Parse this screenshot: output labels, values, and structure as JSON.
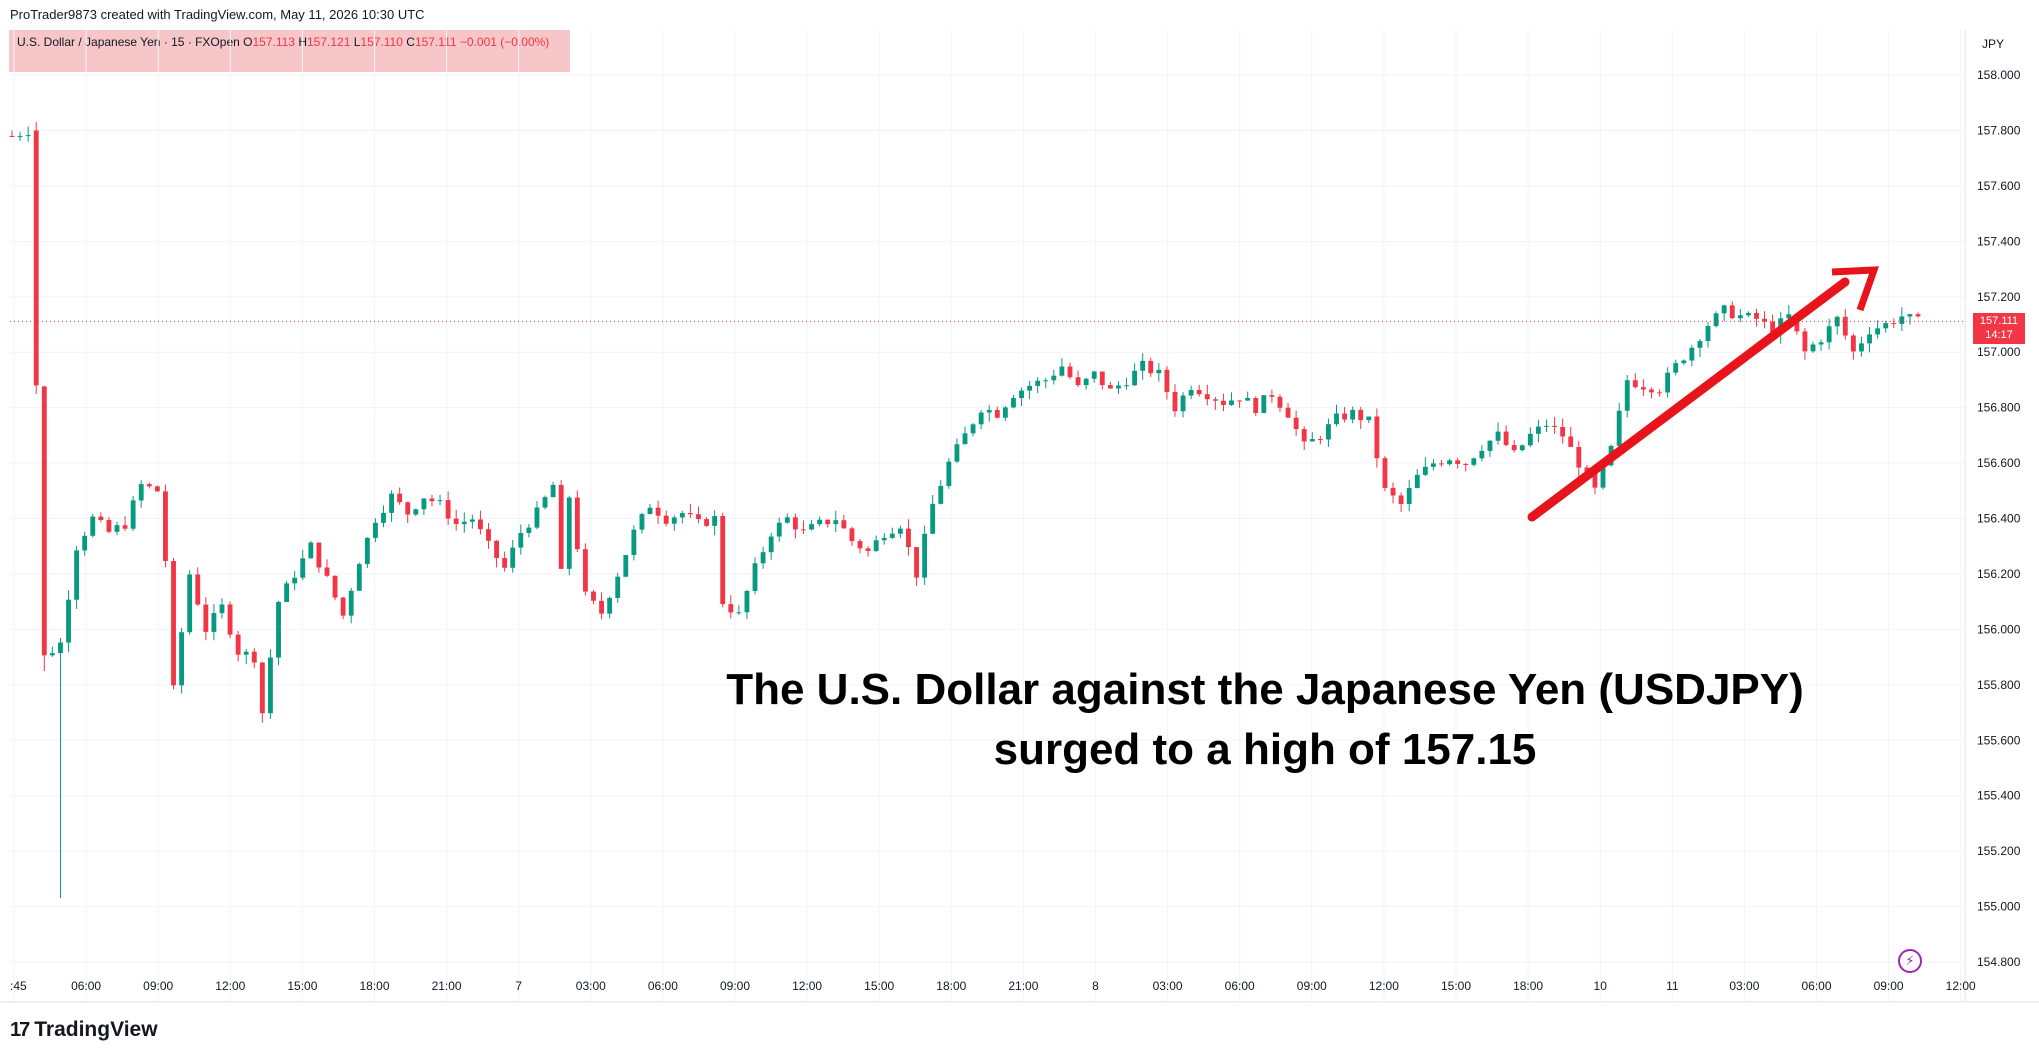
{
  "attribution": "ProTrader9873 created with TradingView.com, May 11, 2026 10:30 UTC",
  "legend": {
    "symbol": "U.S. Dollar / Japanese Yen · 15 · FXOpen",
    "o_label": "O",
    "o_value": "157.113",
    "h_label": "H",
    "h_value": "157.121",
    "l_label": "L",
    "l_value": "157.110",
    "c_label": "C",
    "c_value": "157.111",
    "change": "−0.001 (−0.00%)"
  },
  "currency_label": "JPY",
  "last_price": {
    "price": "157.111",
    "countdown": "14:17"
  },
  "annotation": {
    "line1": "The U.S. Dollar against the Japanese Yen (USDJPY)",
    "line2": "surged to a high of 157.15"
  },
  "footer": {
    "logo_mark": "17",
    "logo_text": "TradingView"
  },
  "icons": {
    "lightning": "lightning-bolt-icon",
    "logo": "tradingview-logo-icon"
  },
  "colors": {
    "up": "#089981",
    "down": "#f23645",
    "arrow": "#e8141b",
    "grid": "#f0f3fa"
  },
  "chart_data": {
    "type": "candlestick",
    "symbol": "USDJPY",
    "timeframe": "15",
    "ylim": [
      154.75,
      158.1
    ],
    "yticks": [
      "158.000",
      "157.800",
      "157.600",
      "157.400",
      "157.200",
      "157.000",
      "156.800",
      "156.600",
      "156.400",
      "156.200",
      "156.000",
      "155.800",
      "155.600",
      "155.400",
      "155.200",
      "155.000",
      "154.800"
    ],
    "xticks": [
      ":45",
      "06:00",
      "09:00",
      "12:00",
      "15:00",
      "18:00",
      "21:00",
      "7",
      "03:00",
      "06:00",
      "09:00",
      "12:00",
      "15:00",
      "18:00",
      "21:00",
      "8",
      "03:00",
      "06:00",
      "09:00",
      "12:00",
      "15:00",
      "18:00",
      "10",
      "11",
      "03:00",
      "06:00",
      "09:00",
      "12:00"
    ],
    "last_price": 157.111,
    "close_path": [
      [
        0,
        157.78
      ],
      [
        2,
        157.8
      ],
      [
        3,
        156.88
      ],
      [
        4,
        155.9
      ],
      [
        6,
        155.95
      ],
      [
        8,
        156.3
      ],
      [
        10,
        156.4
      ],
      [
        12,
        156.35
      ],
      [
        14,
        156.38
      ],
      [
        16,
        156.52
      ],
      [
        18,
        156.5
      ],
      [
        19,
        156.25
      ],
      [
        20,
        155.78
      ],
      [
        22,
        156.2
      ],
      [
        24,
        156.0
      ],
      [
        26,
        156.08
      ],
      [
        28,
        155.92
      ],
      [
        30,
        155.9
      ],
      [
        31,
        155.7
      ],
      [
        32,
        155.9
      ],
      [
        33,
        156.1
      ],
      [
        35,
        156.2
      ],
      [
        37,
        156.3
      ],
      [
        39,
        156.18
      ],
      [
        41,
        156.05
      ],
      [
        43,
        156.25
      ],
      [
        45,
        156.4
      ],
      [
        47,
        156.48
      ],
      [
        49,
        156.42
      ],
      [
        51,
        156.48
      ],
      [
        53,
        156.45
      ],
      [
        55,
        156.38
      ],
      [
        57,
        156.4
      ],
      [
        59,
        156.3
      ],
      [
        61,
        156.22
      ],
      [
        63,
        156.35
      ],
      [
        65,
        156.42
      ],
      [
        67,
        156.52
      ],
      [
        68,
        156.2
      ],
      [
        69,
        156.48
      ],
      [
        71,
        156.12
      ],
      [
        73,
        156.06
      ],
      [
        75,
        156.2
      ],
      [
        77,
        156.35
      ],
      [
        79,
        156.45
      ],
      [
        81,
        156.4
      ],
      [
        83,
        156.42
      ],
      [
        85,
        156.38
      ],
      [
        87,
        156.4
      ],
      [
        88,
        156.1
      ],
      [
        90,
        156.05
      ],
      [
        92,
        156.22
      ],
      [
        94,
        156.35
      ],
      [
        96,
        156.4
      ],
      [
        98,
        156.35
      ],
      [
        100,
        156.38
      ],
      [
        102,
        156.4
      ],
      [
        104,
        156.32
      ],
      [
        106,
        156.28
      ],
      [
        108,
        156.35
      ],
      [
        110,
        156.38
      ],
      [
        112,
        156.2
      ],
      [
        114,
        156.45
      ],
      [
        116,
        156.6
      ],
      [
        118,
        156.7
      ],
      [
        120,
        156.8
      ],
      [
        122,
        156.78
      ],
      [
        124,
        156.85
      ],
      [
        126,
        156.88
      ],
      [
        128,
        156.9
      ],
      [
        130,
        156.95
      ],
      [
        132,
        156.87
      ],
      [
        134,
        156.92
      ],
      [
        136,
        156.86
      ],
      [
        138,
        156.9
      ],
      [
        140,
        156.95
      ],
      [
        142,
        156.92
      ],
      [
        144,
        156.8
      ],
      [
        146,
        156.88
      ],
      [
        148,
        156.85
      ],
      [
        150,
        156.82
      ],
      [
        152,
        156.84
      ],
      [
        154,
        156.8
      ],
      [
        156,
        156.85
      ],
      [
        158,
        156.78
      ],
      [
        160,
        156.66
      ],
      [
        162,
        156.7
      ],
      [
        164,
        156.76
      ],
      [
        166,
        156.78
      ],
      [
        168,
        156.75
      ],
      [
        170,
        156.5
      ],
      [
        172,
        156.45
      ],
      [
        174,
        156.55
      ],
      [
        176,
        156.6
      ],
      [
        178,
        156.62
      ],
      [
        180,
        156.6
      ],
      [
        182,
        156.66
      ],
      [
        184,
        156.7
      ],
      [
        186,
        156.63
      ],
      [
        188,
        156.7
      ],
      [
        190,
        156.74
      ],
      [
        192,
        156.7
      ],
      [
        194,
        156.6
      ],
      [
        196,
        156.5
      ],
      [
        198,
        156.65
      ],
      [
        200,
        156.9
      ],
      [
        202,
        156.88
      ],
      [
        204,
        156.87
      ],
      [
        206,
        156.95
      ],
      [
        208,
        157.02
      ],
      [
        210,
        157.1
      ],
      [
        212,
        157.15
      ],
      [
        214,
        157.13
      ],
      [
        216,
        157.12
      ],
      [
        218,
        157.08
      ],
      [
        220,
        157.13
      ],
      [
        222,
        157.0
      ],
      [
        224,
        157.05
      ],
      [
        226,
        157.12
      ],
      [
        228,
        157.0
      ],
      [
        230,
        157.08
      ],
      [
        232,
        157.1
      ],
      [
        234,
        157.13
      ],
      [
        236,
        157.11
      ]
    ]
  }
}
